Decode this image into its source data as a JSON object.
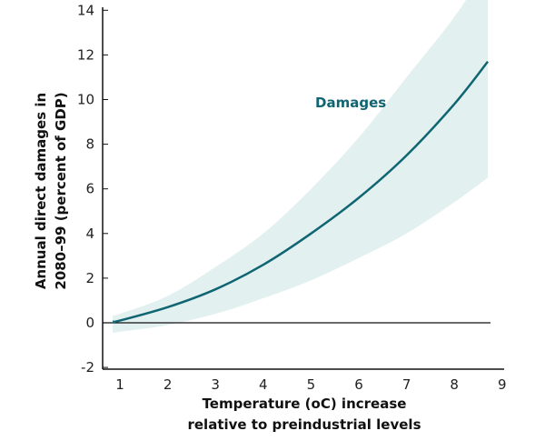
{
  "chart_data": {
    "type": "line",
    "title": "",
    "xlabel_lines": [
      "Temperature (oC) increase",
      "relative to preindustrial levels"
    ],
    "ylabel_lines": [
      "Annual direct damages in",
      "2080–99 (percent of GDP)"
    ],
    "xlim": [
      0.65,
      9
    ],
    "ylim": [
      -2,
      14
    ],
    "xticks": [
      1,
      2,
      3,
      4,
      5,
      6,
      7,
      8,
      9
    ],
    "yticks": [
      -2,
      0,
      2,
      4,
      6,
      8,
      10,
      12,
      14
    ],
    "grid": false,
    "series": [
      {
        "name": "Damages",
        "x": [
          0.85,
          1,
          2,
          3,
          4,
          5,
          6,
          7,
          8,
          8.7
        ],
        "values": [
          0.05,
          0.1,
          0.7,
          1.5,
          2.6,
          4.0,
          5.6,
          7.5,
          9.8,
          11.7
        ],
        "band_upper": [
          0.35,
          0.4,
          1.2,
          2.5,
          4.0,
          6.0,
          8.3,
          11.0,
          13.7,
          16.0
        ],
        "band_lower": [
          -0.45,
          -0.4,
          -0.1,
          0.4,
          1.1,
          1.9,
          2.9,
          4.0,
          5.4,
          6.5
        ]
      }
    ],
    "colors": {
      "line": "#0f6572",
      "band": "#e2f0f0",
      "axis": "#111111"
    }
  }
}
